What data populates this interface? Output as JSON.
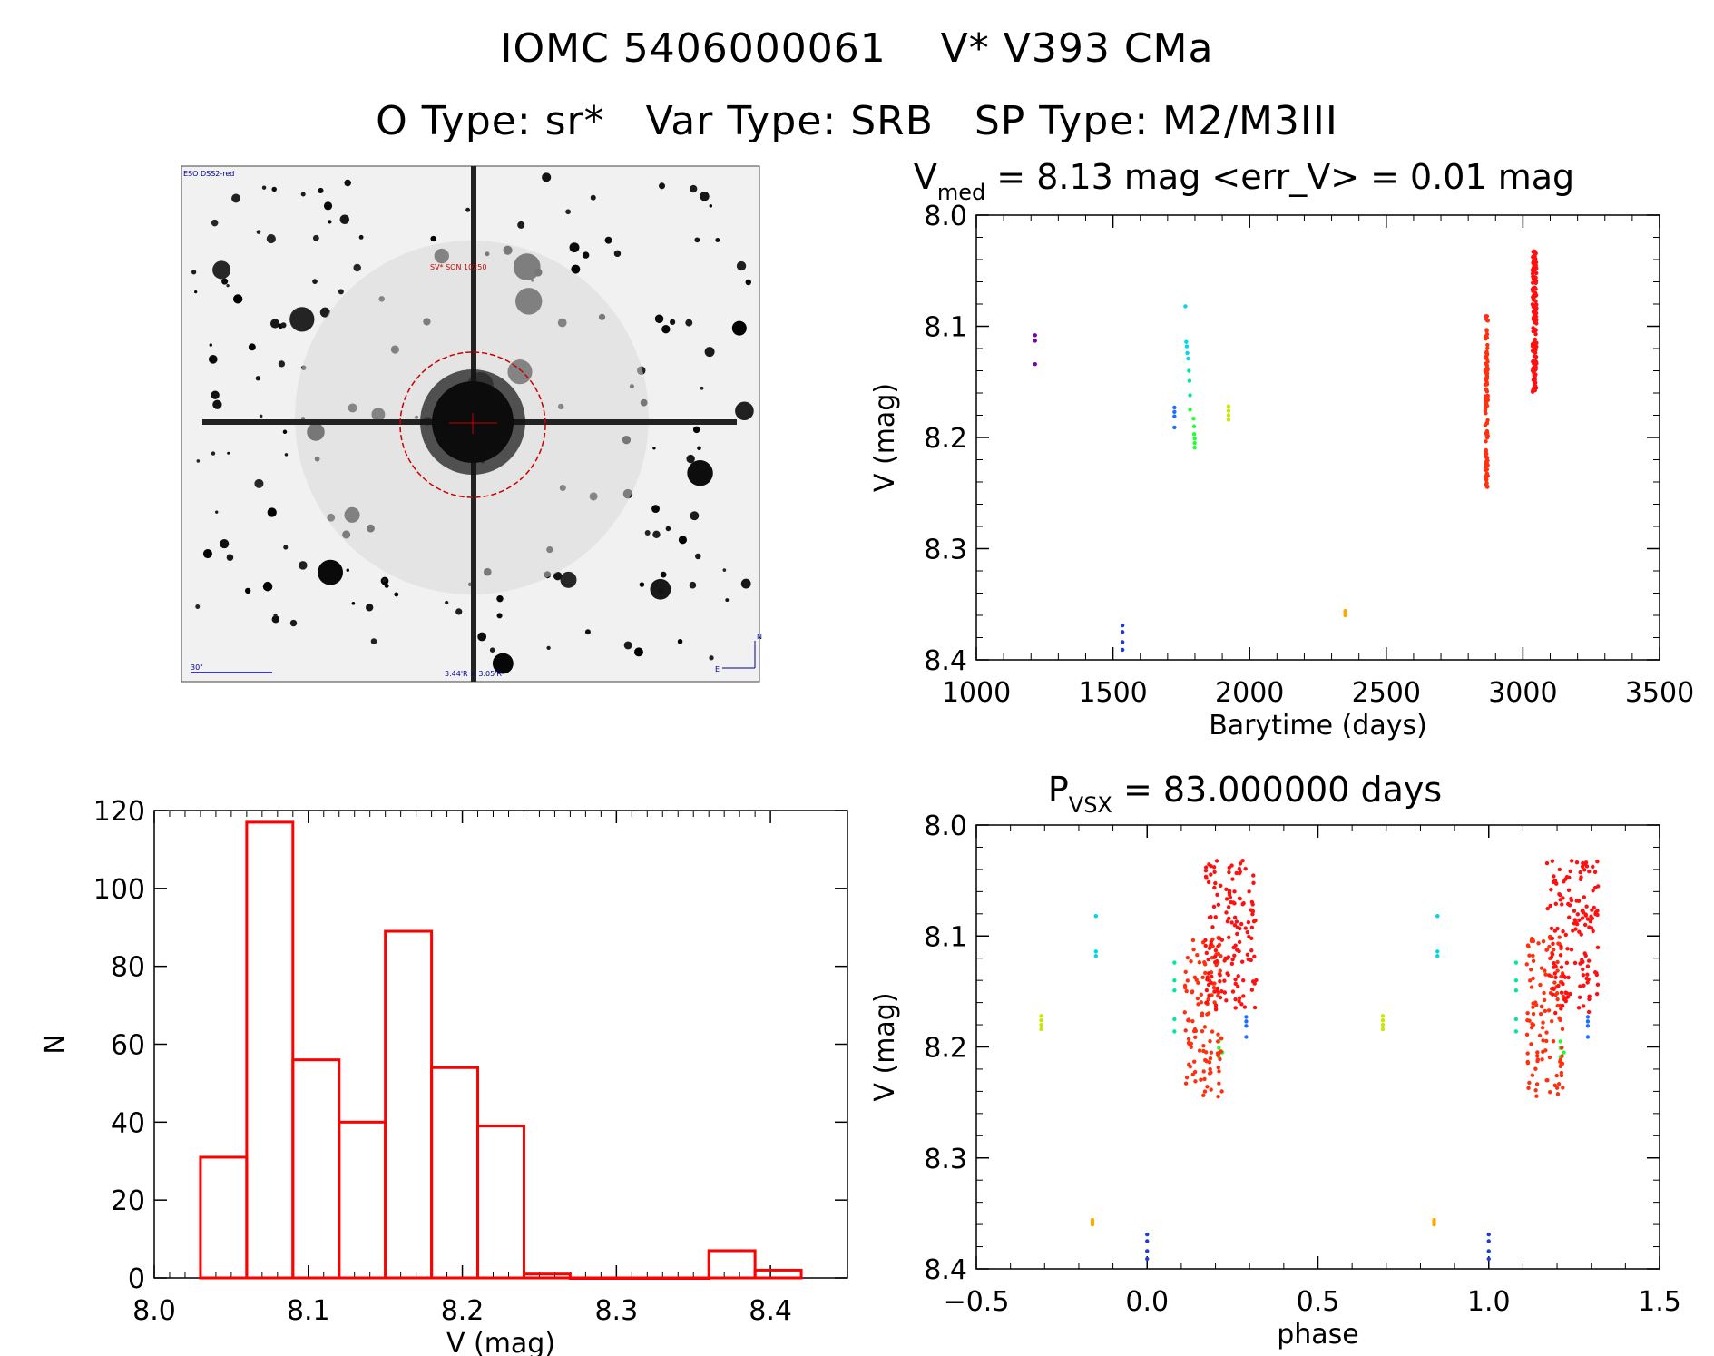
{
  "header": {
    "title_line1": "IOMC 5406000061    V* V393 CMa",
    "title_line2": "O Type: sr*   Var Type: SRB   SP Type: M2/M3III"
  },
  "finder_chart": {
    "survey_label": "ESO DSS2-red",
    "target_label": "SV* SON 10250",
    "scale_label": "30\"",
    "field_label": "3.44'R × 3.05'R",
    "north_label": "N",
    "east_label": "E"
  },
  "colors": {
    "hist_edge": "#ff0000",
    "reticle": "#cc0000",
    "label_blue": "#000099",
    "axis": "#000000"
  },
  "chart_data": [
    {
      "id": "lightcurve",
      "type": "scatter",
      "title_main": "V",
      "title_sub": "med",
      "title_rest": " = 8.13 mag <err_V> = 0.01 mag",
      "xlabel": "Barytime (days)",
      "ylabel": "V (mag)",
      "xlim": [
        1000,
        3500
      ],
      "ylim": [
        8.4,
        8.0
      ],
      "xticks": [
        1000,
        1500,
        2000,
        2500,
        3000,
        3500
      ],
      "xticklabels": [
        "1000",
        "1500",
        "2000",
        "2500",
        "3000",
        "3500"
      ],
      "yticks": [
        8.0,
        8.1,
        8.2,
        8.3,
        8.4
      ],
      "yticklabels": [
        "8.0",
        "8.1",
        "8.2",
        "8.3",
        "8.4"
      ],
      "groups": [
        {
          "color": "#7a00a8",
          "x": [
            1215,
            1215,
            1215
          ],
          "y": [
            8.108,
            8.113,
            8.134
          ]
        },
        {
          "color": "#1f3bd8",
          "x": [
            1535,
            1535,
            1535,
            1535
          ],
          "y": [
            8.369,
            8.375,
            8.384,
            8.391
          ]
        },
        {
          "color": "#1f6fff",
          "x": [
            1725,
            1725,
            1725,
            1725
          ],
          "y": [
            8.173,
            8.177,
            8.181,
            8.191
          ]
        },
        {
          "color": "#00d8e8",
          "x": [
            1765,
            1768,
            1770,
            1772,
            1775
          ],
          "y": [
            8.082,
            8.114,
            8.118,
            8.124,
            8.129
          ]
        },
        {
          "color": "#00e8a0",
          "x": [
            1778,
            1780,
            1782
          ],
          "y": [
            8.14,
            8.149,
            8.162
          ]
        },
        {
          "color": "#20ff30",
          "x": [
            1782,
            1795,
            1797,
            1797,
            1799,
            1799,
            1799
          ],
          "y": [
            8.175,
            8.183,
            8.19,
            8.197,
            8.201,
            8.205,
            8.209
          ]
        },
        {
          "color": "#c8e800",
          "x": [
            1923,
            1923,
            1923,
            1923
          ],
          "y": [
            8.172,
            8.176,
            8.18,
            8.184
          ]
        },
        {
          "color": "#ffa800",
          "x": [
            2350,
            2350,
            2350
          ],
          "y": [
            8.356,
            8.358,
            8.36
          ]
        }
      ],
      "dense_segments": [
        {
          "color": "#ff3010",
          "x_min": 2862,
          "x_max": 2872,
          "y_min": 8.09,
          "y_max": 8.245,
          "count": 118
        },
        {
          "color": "#ff1010",
          "x_min": 3035,
          "x_max": 3050,
          "y_min": 8.032,
          "y_max": 8.16,
          "count": 150
        }
      ]
    },
    {
      "id": "histogram",
      "type": "bar",
      "xlabel": "V (mag)",
      "ylabel": "N",
      "xlim": [
        8.0,
        8.45
      ],
      "ylim": [
        0,
        120
      ],
      "xticks": [
        8.0,
        8.1,
        8.2,
        8.3,
        8.4
      ],
      "xticklabels": [
        "8.0",
        "8.1",
        "8.2",
        "8.3",
        "8.4"
      ],
      "yticks": [
        0,
        20,
        40,
        60,
        80,
        100,
        120
      ],
      "yticklabels": [
        "0",
        "20",
        "40",
        "60",
        "80",
        "100",
        "120"
      ],
      "bin_edges": [
        8.03,
        8.06,
        8.09,
        8.12,
        8.15,
        8.18,
        8.21,
        8.24,
        8.27,
        8.3,
        8.33,
        8.36,
        8.39,
        8.42
      ],
      "counts": [
        31,
        117,
        56,
        40,
        89,
        54,
        39,
        1,
        0,
        0,
        0,
        7,
        2
      ]
    },
    {
      "id": "phased",
      "type": "scatter",
      "title_main": "P",
      "title_sub": "VSX",
      "title_rest": " = 83.000000 days",
      "xlabel": "phase",
      "ylabel": "V (mag)",
      "xlim": [
        -0.5,
        1.5
      ],
      "ylim": [
        8.4,
        8.0
      ],
      "xticks": [
        -0.5,
        0.0,
        0.5,
        1.0,
        1.5
      ],
      "xticklabels": [
        "−0.5",
        "0.0",
        "0.5",
        "1.0",
        "1.5"
      ],
      "yticks": [
        8.0,
        8.1,
        8.2,
        8.3,
        8.4
      ],
      "yticklabels": [
        "8.0",
        "8.1",
        "8.2",
        "8.3",
        "8.4"
      ],
      "period_days": 83.0,
      "repeat_offset": 1.0,
      "groups": [
        {
          "color": "#1f3bd8",
          "x": [
            0.0,
            0.0,
            0.0,
            0.0
          ],
          "y": [
            8.369,
            8.375,
            8.384,
            8.391
          ]
        },
        {
          "color": "#1f6fff",
          "x": [
            0.29,
            0.29,
            0.29,
            0.29
          ],
          "y": [
            8.173,
            8.177,
            8.181,
            8.191
          ]
        },
        {
          "color": "#00d8e8",
          "x": [
            -0.15,
            -0.15,
            -0.15,
            -0.15
          ],
          "y": [
            8.082,
            8.114,
            8.118,
            8.082
          ]
        },
        {
          "color": "#00e8a0",
          "x": [
            0.08,
            0.08,
            0.08,
            0.08,
            0.08
          ],
          "y": [
            8.124,
            8.14,
            8.149,
            8.175,
            8.186
          ]
        },
        {
          "color": "#c8e800",
          "x": [
            -0.31,
            -0.31,
            -0.31,
            -0.31
          ],
          "y": [
            8.172,
            8.176,
            8.18,
            8.184
          ]
        },
        {
          "color": "#ffa800",
          "x": [
            -0.16,
            -0.16,
            -0.16
          ],
          "y": [
            8.356,
            8.358,
            8.36
          ]
        },
        {
          "color": "#20ff30",
          "x": [
            0.21,
            0.21,
            0.22,
            0.21
          ],
          "y": [
            8.195,
            8.201,
            8.205,
            8.209
          ]
        }
      ],
      "dense_segments": [
        {
          "color": "#ff3010",
          "x_min": 0.11,
          "x_max": 0.22,
          "y_min": 8.1,
          "y_max": 8.245,
          "count": 118
        },
        {
          "color": "#ff1010",
          "x_min": 0.17,
          "x_max": 0.32,
          "y_min": 8.032,
          "y_max": 8.17,
          "count": 150
        }
      ]
    }
  ]
}
